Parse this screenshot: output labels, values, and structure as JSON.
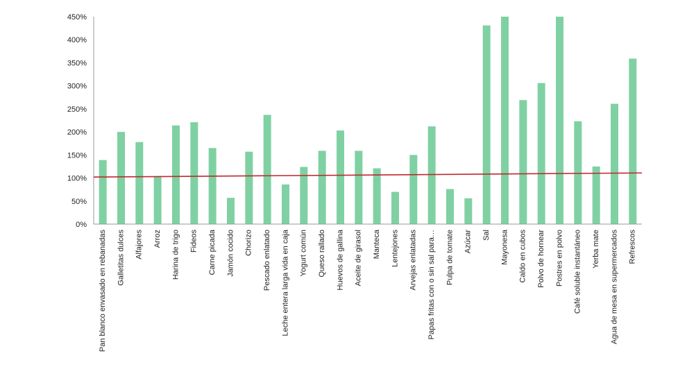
{
  "chart_data": {
    "type": "bar",
    "title": "",
    "xlabel": "",
    "ylabel": "",
    "ylim": [
      0,
      4.5
    ],
    "yticks": [
      "0%",
      "50%",
      "100%",
      "150%",
      "200%",
      "250%",
      "300%",
      "350%",
      "400%",
      "450%"
    ],
    "grid": false,
    "legend": "none",
    "bar_color": "#7fd1a3",
    "reference_line_color": "#c0282d",
    "reference_line": {
      "start": 1.02,
      "end": 1.11
    },
    "categories": [
      "Pan blanco envasado en rebanadas",
      "Galletitas dulces",
      "Alfajores",
      "Arroz",
      "Harina de trigo",
      "Fideos",
      "Carne picada",
      "Jamón cocido",
      "Chorizo",
      "Pescado enlatado",
      "Leche entera larga vida en caja",
      "Yogurt común",
      "Queso rallado",
      "Huevos de gallina",
      "Aceite de girasol",
      "Manteca",
      "Lentejones",
      "Arvejas enlatadas",
      "Papas fritas con o sin sal para…",
      "Pulpa de tomate",
      "Azúcar",
      "Sal",
      "Mayonesa",
      "Caldo en cubos",
      "Polvo de hornear",
      "Postres en polvo",
      "Café soluble instantáneo",
      "Yerba mate",
      "Agua de mesa en supermercados",
      "Refrescos"
    ],
    "values": [
      1.39,
      2.0,
      1.78,
      1.04,
      2.14,
      2.21,
      1.65,
      0.57,
      1.57,
      2.37,
      0.86,
      1.24,
      1.59,
      2.03,
      1.59,
      1.21,
      0.7,
      1.5,
      2.12,
      0.76,
      0.56,
      4.31,
      4.5,
      2.69,
      3.06,
      4.5,
      2.23,
      1.25,
      2.61,
      3.59
    ]
  }
}
